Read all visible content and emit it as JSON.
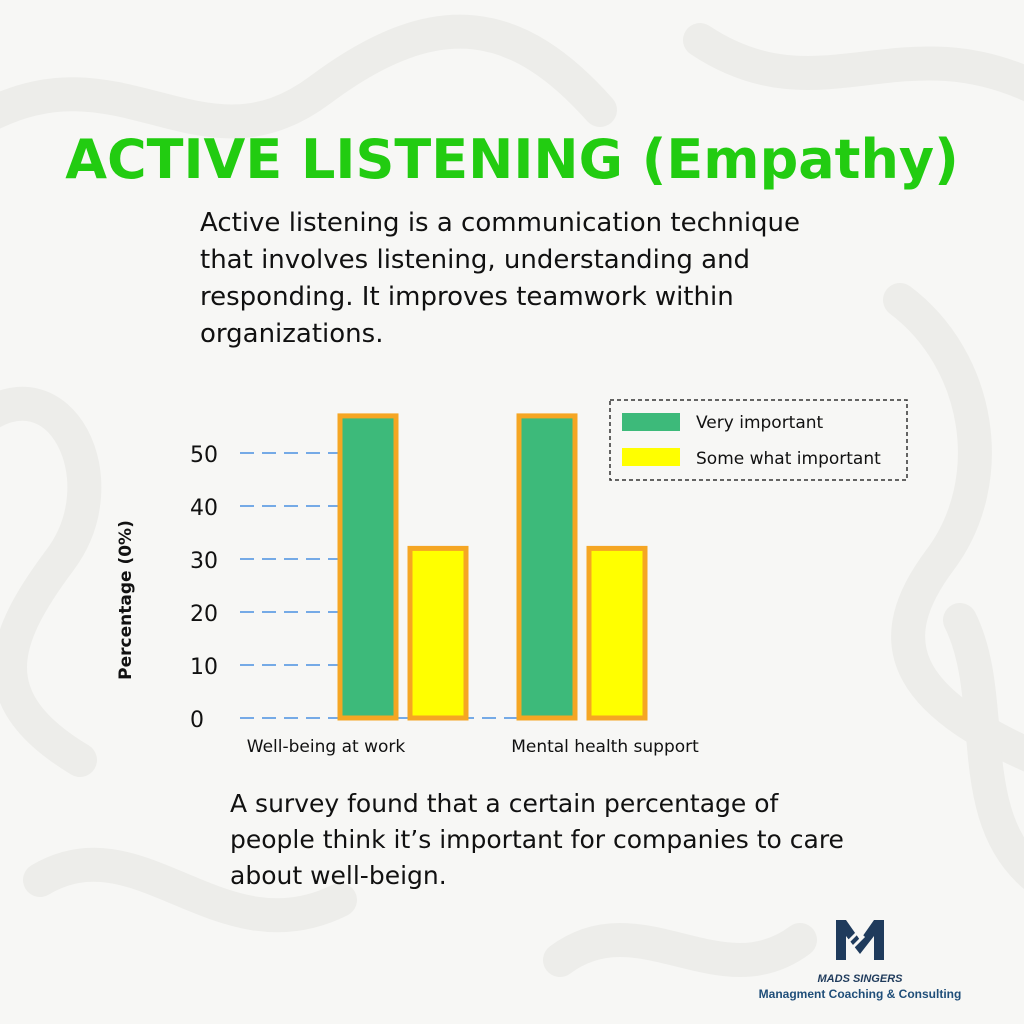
{
  "title": "ACTIVE LISTENING (Empathy)",
  "intro_text": "Active listening is a communication technique that involves listening, understanding and responding. It improves teamwork within organizations.",
  "outro_text": "A survey found that a certain percentage of people think it’s important for companies to care about well-beign.",
  "colors": {
    "title": "#22cc11",
    "very_important": "#3dba7a",
    "somewhat_important": "#ffff00",
    "bar_border": "#f5a623",
    "gridline": "#4a90e2",
    "brand": "#1f3b5c"
  },
  "chart_data": {
    "type": "bar",
    "categories": [
      "Well-being at work",
      "Mental health support"
    ],
    "series": [
      {
        "name": "Very important",
        "values": [
          57,
          57
        ]
      },
      {
        "name": "Some what important",
        "values": [
          32,
          32
        ]
      }
    ],
    "yticks": [
      "0",
      "10",
      "20",
      "30",
      "40",
      "50"
    ],
    "ylabel": "Percentage (0%)",
    "ylim": [
      0,
      57
    ],
    "grid": true,
    "legend": "top-right"
  },
  "brand": {
    "name": "MADS SINGERS",
    "tagline": "Managment Coaching & Consulting",
    "logo_icon": "m-logo-icon"
  }
}
